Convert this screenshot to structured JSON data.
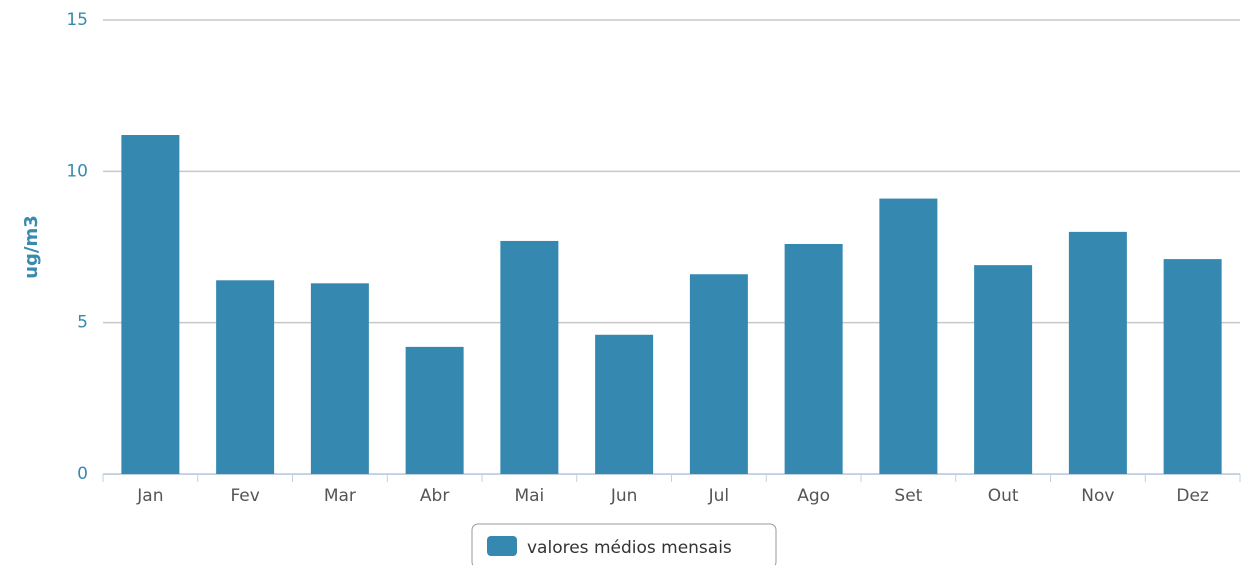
{
  "chart_data": {
    "type": "bar",
    "y_axis_label": "ug/m3",
    "categories": [
      "Jan",
      "Fev",
      "Mar",
      "Abr",
      "Mai",
      "Jun",
      "Jul",
      "Ago",
      "Set",
      "Out",
      "Nov",
      "Dez"
    ],
    "series": [
      {
        "name": "valores médios mensais",
        "color": "#3588b0",
        "values": [
          11.2,
          6.4,
          6.3,
          4.2,
          7.7,
          4.6,
          6.6,
          7.6,
          9.1,
          6.9,
          8.0,
          7.1
        ]
      }
    ],
    "ylim": [
      0,
      15
    ],
    "yticks": [
      0,
      5,
      10,
      15
    ],
    "grid": true,
    "legend": "bottom"
  }
}
